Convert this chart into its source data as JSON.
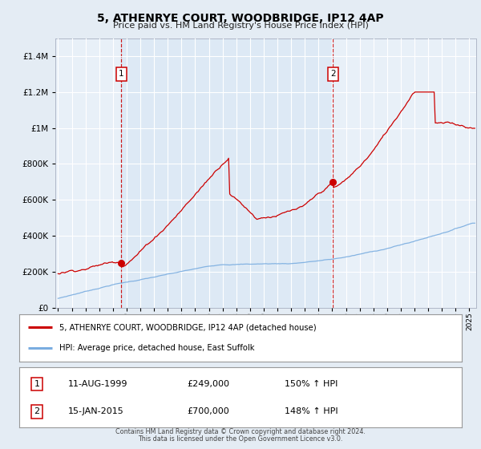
{
  "title": "5, ATHENRYE COURT, WOODBRIDGE, IP12 4AP",
  "subtitle": "Price paid vs. HM Land Registry's House Price Index (HPI)",
  "red_label": "5, ATHENRYE COURT, WOODBRIDGE, IP12 4AP (detached house)",
  "blue_label": "HPI: Average price, detached house, East Suffolk",
  "sale1_date": "11-AUG-1999",
  "sale1_price": "£249,000",
  "sale1_hpi": "150% ↑ HPI",
  "sale2_date": "15-JAN-2015",
  "sale2_price": "£700,000",
  "sale2_hpi": "148% ↑ HPI",
  "footer1": "Contains HM Land Registry data © Crown copyright and database right 2024.",
  "footer2": "This data is licensed under the Open Government Licence v3.0.",
  "bg_color": "#e4ecf4",
  "plot_bg": "#e8f0f8",
  "grid_color": "#ffffff",
  "red_color": "#cc0000",
  "blue_color": "#7aade0",
  "vline_color": "#cc0000",
  "sale1_year": 1999.62,
  "sale2_year": 2015.04,
  "sale1_price_val": 249000,
  "sale2_price_val": 700000,
  "ylim_max": 1500000,
  "ylim_min": 0,
  "xlim_min": 1994.8,
  "xlim_max": 2025.5
}
